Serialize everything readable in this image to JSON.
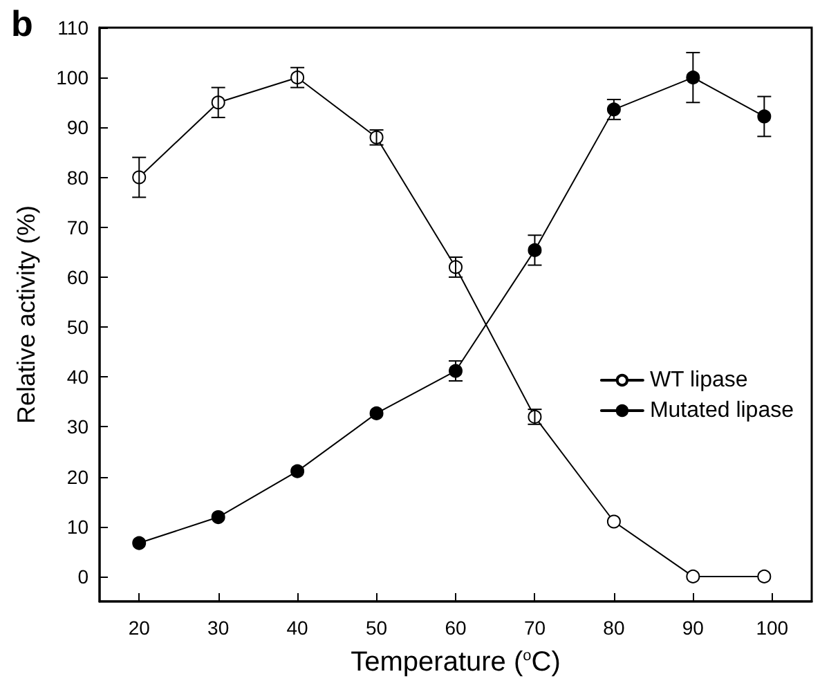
{
  "chart_data": {
    "type": "line",
    "xlabel": "Temperature ($^{o}$C)",
    "ylabel": "Relative activity (%)",
    "annotations": [
      "b"
    ],
    "x": [
      20,
      30,
      40,
      50,
      60,
      70,
      80,
      90,
      99
    ],
    "series": [
      {
        "name": "WT lipase",
        "color": "#ffffff",
        "marker": "circle",
        "values": [
          80,
          95,
          100,
          88,
          62,
          32,
          11,
          0,
          0
        ],
        "errors": [
          4,
          3,
          2,
          1.5,
          2,
          1.5,
          null,
          null,
          null
        ]
      },
      {
        "name": "Mutated lipase",
        "color": "#000000",
        "marker": "circle",
        "values": [
          6.7,
          11.9,
          21.1,
          32.7,
          41.2,
          65.4,
          93.6,
          100,
          92.2
        ],
        "errors": [
          null,
          null,
          null,
          null,
          2,
          3,
          2,
          5,
          4
        ]
      }
    ],
    "xlim": [
      15,
      105
    ],
    "xticks": [
      20,
      30,
      40,
      50,
      60,
      70,
      80,
      90,
      100
    ],
    "ylim": [
      -5,
      110
    ],
    "yticks": [
      0,
      10,
      20,
      30,
      40,
      50,
      60,
      70,
      80,
      90,
      100,
      110
    ],
    "legend": "right",
    "grid": false,
    "line_style": "solid"
  }
}
